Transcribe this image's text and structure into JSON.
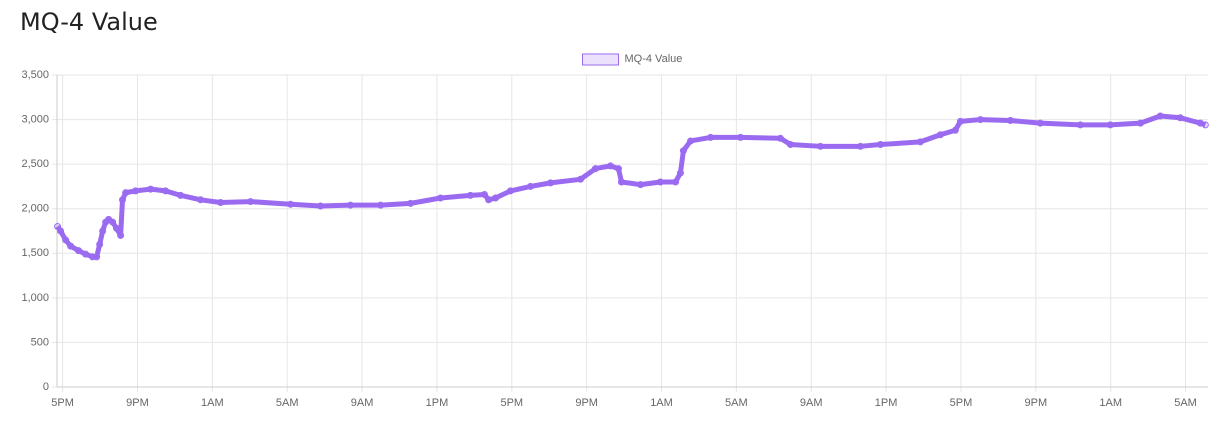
{
  "title": "MQ-4 Value",
  "chart_data": {
    "type": "line",
    "series": [
      {
        "name": "MQ-4 Value",
        "color": "#9a6bf0",
        "x": [
          -0.27,
          -0.11,
          0.16,
          0.43,
          0.85,
          1.23,
          1.6,
          1.82,
          1.98,
          2.14,
          2.3,
          2.46,
          2.67,
          2.88,
          3.1,
          3.2,
          3.37,
          3.9,
          4.7,
          5.5,
          6.3,
          7.37,
          8.44,
          10.04,
          12.18,
          13.78,
          15.38,
          16.99,
          18.59,
          20.19,
          21.79,
          22.54,
          22.76,
          23.13,
          23.93,
          25,
          26.07,
          27.67,
          28.47,
          29.27,
          29.7,
          29.86,
          30.88,
          31.94,
          32.75,
          33.01,
          33.17,
          33.55,
          34.62,
          36.22,
          38.35,
          38.89,
          40.49,
          42.63,
          43.7,
          45.83,
          46.9,
          47.7,
          47.97,
          49.04,
          50.64,
          52.24,
          54.38,
          55.98,
          57.59,
          58.65,
          59.72,
          60.79,
          61.06
        ],
        "values": [
          1800,
          1750,
          1650,
          1580,
          1530,
          1490,
          1460,
          1460,
          1600,
          1750,
          1850,
          1880,
          1850,
          1780,
          1700,
          2100,
          2180,
          2200,
          2220,
          2200,
          2150,
          2100,
          2070,
          2080,
          2050,
          2030,
          2040,
          2040,
          2060,
          2120,
          2150,
          2160,
          2100,
          2120,
          2200,
          2250,
          2290,
          2330,
          2450,
          2480,
          2450,
          2300,
          2270,
          2300,
          2300,
          2400,
          2650,
          2760,
          2800,
          2800,
          2790,
          2720,
          2700,
          2700,
          2720,
          2750,
          2830,
          2880,
          2980,
          3000,
          2990,
          2960,
          2940,
          2940,
          2960,
          3040,
          3020,
          2960,
          2940
        ]
      }
    ],
    "xlim": [
      -0.3,
      61.2
    ],
    "xticks": [
      {
        "value": 0,
        "label": "5PM"
      },
      {
        "value": 4,
        "label": "9PM"
      },
      {
        "value": 8,
        "label": "1AM"
      },
      {
        "value": 12,
        "label": "5AM"
      },
      {
        "value": 16,
        "label": "9AM"
      },
      {
        "value": 20,
        "label": "1PM"
      },
      {
        "value": 24,
        "label": "5PM"
      },
      {
        "value": 28,
        "label": "9PM"
      },
      {
        "value": 32,
        "label": "1AM"
      },
      {
        "value": 36,
        "label": "5AM"
      },
      {
        "value": 40,
        "label": "9AM"
      },
      {
        "value": 44,
        "label": "1PM"
      },
      {
        "value": 48,
        "label": "5PM"
      },
      {
        "value": 52,
        "label": "9PM"
      },
      {
        "value": 56,
        "label": "1AM"
      },
      {
        "value": 60,
        "label": "5AM"
      }
    ],
    "ylim": [
      0,
      3500
    ],
    "yticks": [
      0,
      500,
      {
        "value": 1000,
        "label": "1,000"
      },
      {
        "value": 1500,
        "label": "1,500"
      },
      {
        "value": 2000,
        "label": "2,000"
      },
      {
        "value": 2500,
        "label": "2,500"
      },
      {
        "value": 3000,
        "label": "3,000"
      },
      {
        "value": 3500,
        "label": "3,500"
      }
    ],
    "grid": true,
    "legend": "top"
  }
}
